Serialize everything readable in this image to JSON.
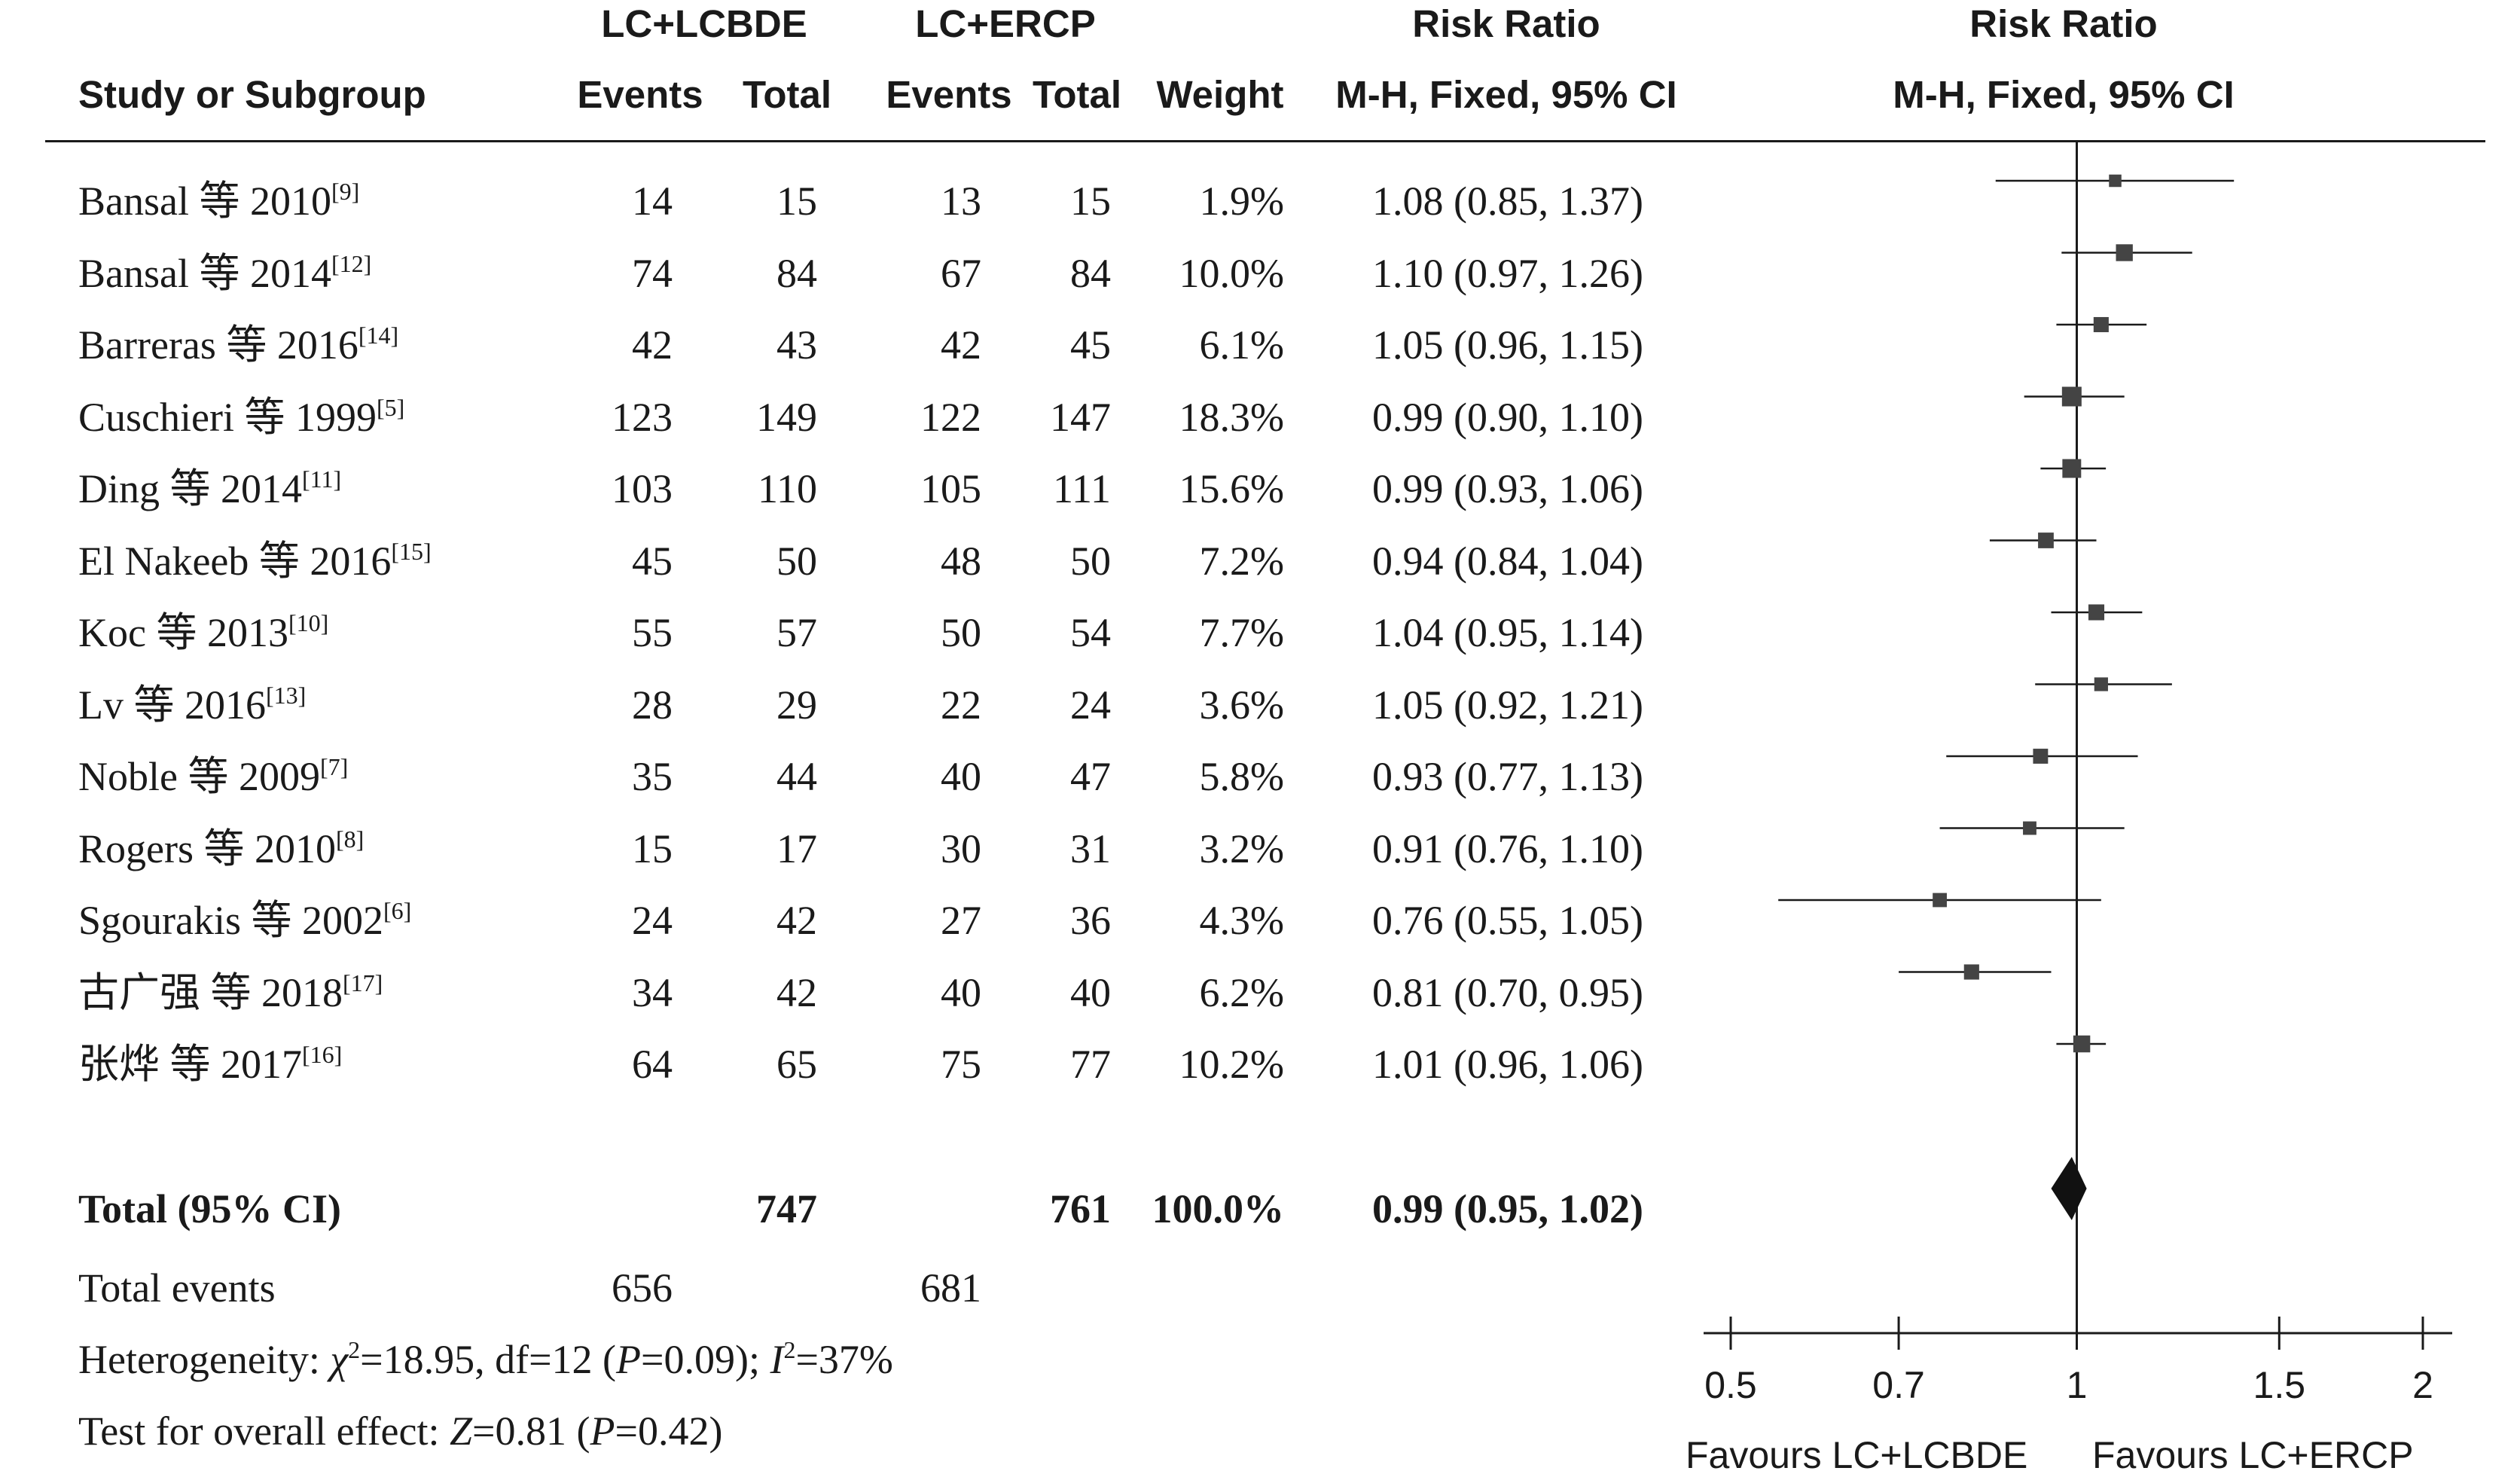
{
  "headers": {
    "group1": "LC+LCBDE",
    "group2": "LC+ERCP",
    "study": "Study or Subgroup",
    "events1": "Events",
    "total1": "Total",
    "events2": "Events",
    "total2": "Total",
    "weight": "Weight",
    "rr_title_table": "Risk Ratio",
    "rr_method_table": "M-H, Fixed, 95% CI",
    "rr_title_plot": "Risk Ratio",
    "rr_method_plot": "M-H, Fixed, 95% CI"
  },
  "studies": [
    {
      "name": "Bansal 等 2010",
      "ref": "[9]",
      "e1": "14",
      "t1": "15",
      "e2": "13",
      "t2": "15",
      "weight": "1.9%",
      "ci_text": "1.08 (0.85, 1.37)"
    },
    {
      "name": "Bansal 等 2014",
      "ref": "[12]",
      "e1": "74",
      "t1": "84",
      "e2": "67",
      "t2": "84",
      "weight": "10.0%",
      "ci_text": "1.10 (0.97, 1.26)"
    },
    {
      "name": "Barreras 等 2016",
      "ref": "[14]",
      "e1": "42",
      "t1": "43",
      "e2": "42",
      "t2": "45",
      "weight": "6.1%",
      "ci_text": "1.05 (0.96, 1.15)"
    },
    {
      "name": "Cuschieri 等 1999",
      "ref": "[5]",
      "e1": "123",
      "t1": "149",
      "e2": "122",
      "t2": "147",
      "weight": "18.3%",
      "ci_text": "0.99 (0.90, 1.10)"
    },
    {
      "name": "Ding 等 2014",
      "ref": "[11]",
      "e1": "103",
      "t1": "110",
      "e2": "105",
      "t2": "111",
      "weight": "15.6%",
      "ci_text": "0.99 (0.93, 1.06)"
    },
    {
      "name": "El Nakeeb 等 2016",
      "ref": "[15]",
      "e1": "45",
      "t1": "50",
      "e2": "48",
      "t2": "50",
      "weight": "7.2%",
      "ci_text": "0.94 (0.84, 1.04)"
    },
    {
      "name": "Koc 等 2013",
      "ref": "[10]",
      "e1": "55",
      "t1": "57",
      "e2": "50",
      "t2": "54",
      "weight": "7.7%",
      "ci_text": "1.04 (0.95, 1.14)"
    },
    {
      "name": "Lv 等 2016",
      "ref": "[13]",
      "e1": "28",
      "t1": "29",
      "e2": "22",
      "t2": "24",
      "weight": "3.6%",
      "ci_text": "1.05 (0.92, 1.21)"
    },
    {
      "name": "Noble 等 2009",
      "ref": "[7]",
      "e1": "35",
      "t1": "44",
      "e2": "40",
      "t2": "47",
      "weight": "5.8%",
      "ci_text": "0.93 (0.77, 1.13)"
    },
    {
      "name": "Rogers 等 2010",
      "ref": "[8]",
      "e1": "15",
      "t1": "17",
      "e2": "30",
      "t2": "31",
      "weight": "3.2%",
      "ci_text": "0.91 (0.76, 1.10)"
    },
    {
      "name": "Sgourakis 等 2002",
      "ref": "[6]",
      "e1": "24",
      "t1": "42",
      "e2": "27",
      "t2": "36",
      "weight": "4.3%",
      "ci_text": "0.76 (0.55, 1.05)"
    },
    {
      "name": "古广强 等 2018",
      "ref": "[17]",
      "e1": "34",
      "t1": "42",
      "e2": "40",
      "t2": "40",
      "weight": "6.2%",
      "ci_text": "0.81 (0.70, 0.95)"
    },
    {
      "name": "张烨 等 2017",
      "ref": "[16]",
      "e1": "64",
      "t1": "65",
      "e2": "75",
      "t2": "77",
      "weight": "10.2%",
      "ci_text": "1.01 (0.96, 1.06)"
    }
  ],
  "total": {
    "label": "Total (95% CI)",
    "t1": "747",
    "t2": "761",
    "weight": "100.0%",
    "ci_text": "0.99 (0.95, 1.02)"
  },
  "total_events": {
    "label": "Total events",
    "e1": "656",
    "e2": "681"
  },
  "heterogeneity": {
    "prefix": "Heterogeneity: ",
    "chi_symbol": "χ",
    "chi_value": "=18.95, df=12 (",
    "p_symbol": "P",
    "p_value": "=0.09); ",
    "i_symbol": "I",
    "i_value": "=37%"
  },
  "overall_effect": {
    "prefix": "Test for overall effect: ",
    "z_symbol": "Z",
    "z_value": "=0.81 (",
    "p_symbol": "P",
    "p_value": "=0.42)"
  },
  "axis": {
    "favours_left": "Favours LC+LCBDE",
    "favours_right": "Favours LC+ERCP"
  },
  "chart_data": {
    "type": "forest",
    "x_scale": "log",
    "xlim": [
      0.5,
      2
    ],
    "xticks": [
      0.5,
      0.7,
      1,
      1.5,
      2
    ],
    "xtick_labels": [
      "0.5",
      "0.7",
      "1",
      "1.5",
      "2"
    ],
    "reference_line": 1,
    "series": [
      {
        "label": "Bansal 等 2010",
        "rr": 1.08,
        "lo": 0.85,
        "hi": 1.37,
        "weight": 1.9
      },
      {
        "label": "Bansal 等 2014",
        "rr": 1.1,
        "lo": 0.97,
        "hi": 1.26,
        "weight": 10.0
      },
      {
        "label": "Barreras 等 2016",
        "rr": 1.05,
        "lo": 0.96,
        "hi": 1.15,
        "weight": 6.1
      },
      {
        "label": "Cuschieri 等 1999",
        "rr": 0.99,
        "lo": 0.9,
        "hi": 1.1,
        "weight": 18.3
      },
      {
        "label": "Ding 等 2014",
        "rr": 0.99,
        "lo": 0.93,
        "hi": 1.06,
        "weight": 15.6
      },
      {
        "label": "El Nakeeb 等 2016",
        "rr": 0.94,
        "lo": 0.84,
        "hi": 1.04,
        "weight": 7.2
      },
      {
        "label": "Koc 等 2013",
        "rr": 1.04,
        "lo": 0.95,
        "hi": 1.14,
        "weight": 7.7
      },
      {
        "label": "Lv 等 2016",
        "rr": 1.05,
        "lo": 0.92,
        "hi": 1.21,
        "weight": 3.6
      },
      {
        "label": "Noble 等 2009",
        "rr": 0.93,
        "lo": 0.77,
        "hi": 1.13,
        "weight": 5.8
      },
      {
        "label": "Rogers 等 2010",
        "rr": 0.91,
        "lo": 0.76,
        "hi": 1.1,
        "weight": 3.2
      },
      {
        "label": "Sgourakis 等 2002",
        "rr": 0.76,
        "lo": 0.55,
        "hi": 1.05,
        "weight": 4.3
      },
      {
        "label": "古广强 等 2018",
        "rr": 0.81,
        "lo": 0.7,
        "hi": 0.95,
        "weight": 6.2
      },
      {
        "label": "张烨 等 2017",
        "rr": 1.01,
        "lo": 0.96,
        "hi": 1.06,
        "weight": 10.2
      }
    ],
    "pooled": {
      "rr": 0.99,
      "lo": 0.95,
      "hi": 1.02
    },
    "colors": {
      "marker": "#444444",
      "line": "#1a1a1a"
    }
  }
}
